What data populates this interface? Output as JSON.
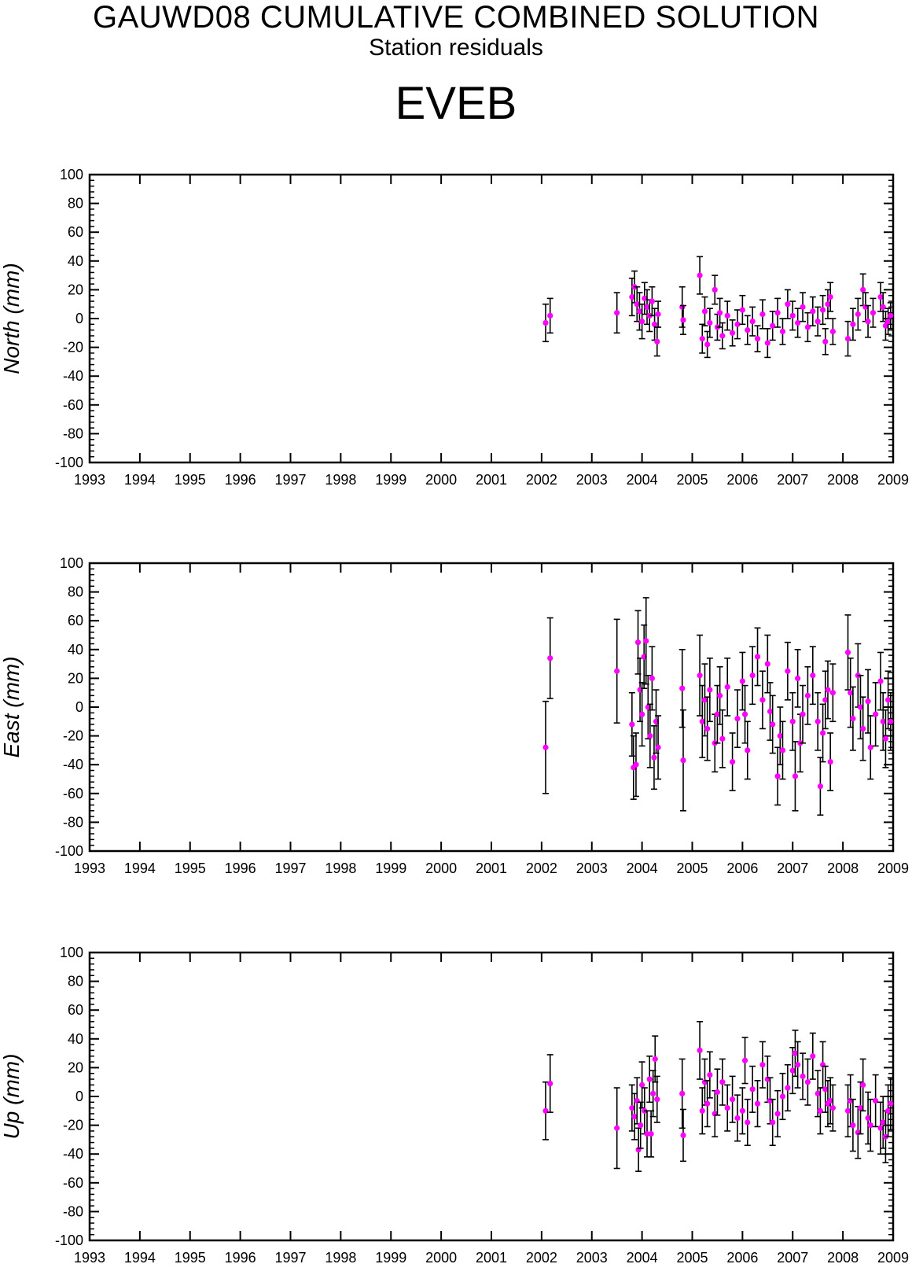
{
  "header": {
    "title": "GAUWD08 CUMULATIVE COMBINED SOLUTION",
    "subtitle": "Station residuals",
    "station": "EVEB"
  },
  "colors": {
    "point": "#ff00ff",
    "error_bar": "#000000",
    "axis": "#000000"
  },
  "chart_data": [
    {
      "type": "scatter",
      "name": "north-panel",
      "ylabel": "North (mm)",
      "xlim": [
        1993,
        2009
      ],
      "ylim": [
        -100,
        100
      ],
      "xticks": [
        "1993",
        "1994",
        "1995",
        "1996",
        "1997",
        "1998",
        "1999",
        "2000",
        "2001",
        "2002",
        "2003",
        "2004",
        "2005",
        "2006",
        "2007",
        "2008",
        "2009"
      ],
      "yticks": [
        "100",
        "80",
        "60",
        "40",
        "20",
        "0",
        "-20",
        "-40",
        "-60",
        "-80",
        "-100"
      ],
      "grid": false,
      "points": [
        {
          "x": 2002.08,
          "y": -3,
          "err": 13
        },
        {
          "x": 2002.17,
          "y": 2,
          "err": 12
        },
        {
          "x": 2003.5,
          "y": 4,
          "err": 14
        },
        {
          "x": 2003.8,
          "y": 15,
          "err": 13
        },
        {
          "x": 2003.85,
          "y": 22,
          "err": 11
        },
        {
          "x": 2003.9,
          "y": 10,
          "err": 12
        },
        {
          "x": 2003.95,
          "y": 5,
          "err": 13
        },
        {
          "x": 2004.0,
          "y": -2,
          "err": 12
        },
        {
          "x": 2004.05,
          "y": 14,
          "err": 11
        },
        {
          "x": 2004.1,
          "y": 8,
          "err": 12
        },
        {
          "x": 2004.15,
          "y": 2,
          "err": 11
        },
        {
          "x": 2004.2,
          "y": 12,
          "err": 10
        },
        {
          "x": 2004.25,
          "y": -4,
          "err": 11
        },
        {
          "x": 2004.3,
          "y": -16,
          "err": 10
        },
        {
          "x": 2004.32,
          "y": 3,
          "err": 9
        },
        {
          "x": 2004.8,
          "y": 8,
          "err": 14
        },
        {
          "x": 2004.82,
          "y": -1,
          "err": 10
        },
        {
          "x": 2005.15,
          "y": 30,
          "err": 13
        },
        {
          "x": 2005.2,
          "y": -14,
          "err": 10
        },
        {
          "x": 2005.25,
          "y": 5,
          "err": 10
        },
        {
          "x": 2005.3,
          "y": -18,
          "err": 9
        },
        {
          "x": 2005.35,
          "y": -3,
          "err": 10
        },
        {
          "x": 2005.45,
          "y": 20,
          "err": 10
        },
        {
          "x": 2005.5,
          "y": -6,
          "err": 9
        },
        {
          "x": 2005.55,
          "y": 4,
          "err": 10
        },
        {
          "x": 2005.6,
          "y": -12,
          "err": 9
        },
        {
          "x": 2005.7,
          "y": 2,
          "err": 10
        },
        {
          "x": 2005.8,
          "y": -10,
          "err": 9
        },
        {
          "x": 2005.9,
          "y": -4,
          "err": 10
        },
        {
          "x": 2006.0,
          "y": 6,
          "err": 10
        },
        {
          "x": 2006.1,
          "y": -8,
          "err": 10
        },
        {
          "x": 2006.2,
          "y": -2,
          "err": 10
        },
        {
          "x": 2006.3,
          "y": -14,
          "err": 9
        },
        {
          "x": 2006.4,
          "y": 3,
          "err": 10
        },
        {
          "x": 2006.5,
          "y": -17,
          "err": 10
        },
        {
          "x": 2006.6,
          "y": -5,
          "err": 10
        },
        {
          "x": 2006.7,
          "y": 4,
          "err": 10
        },
        {
          "x": 2006.8,
          "y": -9,
          "err": 9
        },
        {
          "x": 2006.9,
          "y": 10,
          "err": 10
        },
        {
          "x": 2007.0,
          "y": 2,
          "err": 10
        },
        {
          "x": 2007.1,
          "y": -3,
          "err": 10
        },
        {
          "x": 2007.2,
          "y": 8,
          "err": 10
        },
        {
          "x": 2007.3,
          "y": -6,
          "err": 10
        },
        {
          "x": 2007.4,
          "y": 5,
          "err": 10
        },
        {
          "x": 2007.5,
          "y": -2,
          "err": 10
        },
        {
          "x": 2007.6,
          "y": 6,
          "err": 10
        },
        {
          "x": 2007.65,
          "y": -16,
          "err": 9
        },
        {
          "x": 2007.7,
          "y": 10,
          "err": 10
        },
        {
          "x": 2007.75,
          "y": 15,
          "err": 10
        },
        {
          "x": 2007.8,
          "y": -9,
          "err": 9
        },
        {
          "x": 2008.1,
          "y": -14,
          "err": 12
        },
        {
          "x": 2008.2,
          "y": -4,
          "err": 11
        },
        {
          "x": 2008.3,
          "y": 3,
          "err": 11
        },
        {
          "x": 2008.4,
          "y": 20,
          "err": 11
        },
        {
          "x": 2008.45,
          "y": 8,
          "err": 10
        },
        {
          "x": 2008.5,
          "y": -2,
          "err": 11
        },
        {
          "x": 2008.6,
          "y": 4,
          "err": 10
        },
        {
          "x": 2008.75,
          "y": 15,
          "err": 10
        },
        {
          "x": 2008.8,
          "y": 8,
          "err": 10
        },
        {
          "x": 2008.85,
          "y": -5,
          "err": 10
        },
        {
          "x": 2008.9,
          "y": -2,
          "err": 9
        },
        {
          "x": 2008.95,
          "y": 2,
          "err": 9
        }
      ]
    },
    {
      "type": "scatter",
      "name": "east-panel",
      "ylabel": "East (mm)",
      "xlim": [
        1993,
        2009
      ],
      "ylim": [
        -100,
        100
      ],
      "xticks": [
        "1993",
        "1994",
        "1995",
        "1996",
        "1997",
        "1998",
        "1999",
        "2000",
        "2001",
        "2002",
        "2003",
        "2004",
        "2005",
        "2006",
        "2007",
        "2008",
        "2009"
      ],
      "yticks": [
        "100",
        "80",
        "60",
        "40",
        "20",
        "0",
        "-20",
        "-40",
        "-60",
        "-80",
        "-100"
      ],
      "grid": false,
      "points": [
        {
          "x": 2002.08,
          "y": -28,
          "err": 32
        },
        {
          "x": 2002.17,
          "y": 34,
          "err": 28
        },
        {
          "x": 2003.5,
          "y": 25,
          "err": 36
        },
        {
          "x": 2003.8,
          "y": -12,
          "err": 22
        },
        {
          "x": 2003.83,
          "y": -42,
          "err": 22
        },
        {
          "x": 2003.88,
          "y": -40,
          "err": 22
        },
        {
          "x": 2003.92,
          "y": 45,
          "err": 22
        },
        {
          "x": 2003.96,
          "y": 12,
          "err": 22
        },
        {
          "x": 2004.0,
          "y": -5,
          "err": 22
        },
        {
          "x": 2004.04,
          "y": 35,
          "err": 22
        },
        {
          "x": 2004.08,
          "y": 46,
          "err": 30
        },
        {
          "x": 2004.12,
          "y": 0,
          "err": 22
        },
        {
          "x": 2004.16,
          "y": -20,
          "err": 22
        },
        {
          "x": 2004.2,
          "y": 20,
          "err": 22
        },
        {
          "x": 2004.24,
          "y": -35,
          "err": 22
        },
        {
          "x": 2004.28,
          "y": -10,
          "err": 22
        },
        {
          "x": 2004.32,
          "y": -28,
          "err": 22
        },
        {
          "x": 2004.8,
          "y": 13,
          "err": 27
        },
        {
          "x": 2004.82,
          "y": -37,
          "err": 35
        },
        {
          "x": 2005.15,
          "y": 22,
          "err": 28
        },
        {
          "x": 2005.2,
          "y": -10,
          "err": 25
        },
        {
          "x": 2005.25,
          "y": 5,
          "err": 25
        },
        {
          "x": 2005.3,
          "y": -15,
          "err": 22
        },
        {
          "x": 2005.35,
          "y": 12,
          "err": 22
        },
        {
          "x": 2005.45,
          "y": -25,
          "err": 20
        },
        {
          "x": 2005.5,
          "y": -5,
          "err": 20
        },
        {
          "x": 2005.55,
          "y": 8,
          "err": 20
        },
        {
          "x": 2005.6,
          "y": -22,
          "err": 20
        },
        {
          "x": 2005.7,
          "y": 14,
          "err": 20
        },
        {
          "x": 2005.8,
          "y": -38,
          "err": 20
        },
        {
          "x": 2005.9,
          "y": -8,
          "err": 20
        },
        {
          "x": 2006.0,
          "y": 18,
          "err": 20
        },
        {
          "x": 2006.05,
          "y": -5,
          "err": 20
        },
        {
          "x": 2006.1,
          "y": -30,
          "err": 20
        },
        {
          "x": 2006.2,
          "y": 22,
          "err": 20
        },
        {
          "x": 2006.3,
          "y": 35,
          "err": 20
        },
        {
          "x": 2006.4,
          "y": 5,
          "err": 20
        },
        {
          "x": 2006.5,
          "y": 30,
          "err": 20
        },
        {
          "x": 2006.55,
          "y": -3,
          "err": 20
        },
        {
          "x": 2006.6,
          "y": -12,
          "err": 20
        },
        {
          "x": 2006.7,
          "y": -48,
          "err": 20
        },
        {
          "x": 2006.75,
          "y": -20,
          "err": 20
        },
        {
          "x": 2006.8,
          "y": -30,
          "err": 20
        },
        {
          "x": 2006.9,
          "y": 25,
          "err": 20
        },
        {
          "x": 2007.0,
          "y": -10,
          "err": 20
        },
        {
          "x": 2007.05,
          "y": -48,
          "err": 24
        },
        {
          "x": 2007.1,
          "y": 20,
          "err": 20
        },
        {
          "x": 2007.15,
          "y": -25,
          "err": 20
        },
        {
          "x": 2007.2,
          "y": -5,
          "err": 20
        },
        {
          "x": 2007.3,
          "y": 8,
          "err": 20
        },
        {
          "x": 2007.4,
          "y": 22,
          "err": 20
        },
        {
          "x": 2007.5,
          "y": -10,
          "err": 20
        },
        {
          "x": 2007.55,
          "y": -55,
          "err": 20
        },
        {
          "x": 2007.6,
          "y": -18,
          "err": 20
        },
        {
          "x": 2007.65,
          "y": 5,
          "err": 20
        },
        {
          "x": 2007.7,
          "y": 12,
          "err": 20
        },
        {
          "x": 2007.75,
          "y": -38,
          "err": 20
        },
        {
          "x": 2007.8,
          "y": 10,
          "err": 20
        },
        {
          "x": 2008.1,
          "y": 38,
          "err": 26
        },
        {
          "x": 2008.15,
          "y": 10,
          "err": 24
        },
        {
          "x": 2008.2,
          "y": -8,
          "err": 22
        },
        {
          "x": 2008.3,
          "y": 22,
          "err": 22
        },
        {
          "x": 2008.35,
          "y": 0,
          "err": 22
        },
        {
          "x": 2008.4,
          "y": -15,
          "err": 22
        },
        {
          "x": 2008.5,
          "y": 4,
          "err": 22
        },
        {
          "x": 2008.55,
          "y": -28,
          "err": 22
        },
        {
          "x": 2008.65,
          "y": -5,
          "err": 22
        },
        {
          "x": 2008.75,
          "y": 18,
          "err": 20
        },
        {
          "x": 2008.8,
          "y": -10,
          "err": 20
        },
        {
          "x": 2008.85,
          "y": -22,
          "err": 20
        },
        {
          "x": 2008.9,
          "y": 5,
          "err": 20
        },
        {
          "x": 2008.95,
          "y": -10,
          "err": 20
        }
      ]
    },
    {
      "type": "scatter",
      "name": "up-panel",
      "ylabel": "Up (mm)",
      "xlim": [
        1993,
        2009
      ],
      "ylim": [
        -100,
        100
      ],
      "xticks": [
        "1993",
        "1994",
        "1995",
        "1996",
        "1997",
        "1998",
        "1999",
        "2000",
        "2001",
        "2002",
        "2003",
        "2004",
        "2005",
        "2006",
        "2007",
        "2008",
        "2009"
      ],
      "yticks": [
        "100",
        "80",
        "60",
        "40",
        "20",
        "0",
        "-20",
        "-40",
        "-60",
        "-80",
        "-100"
      ],
      "grid": false,
      "points": [
        {
          "x": 2002.08,
          "y": -10,
          "err": 20
        },
        {
          "x": 2002.17,
          "y": 9,
          "err": 20
        },
        {
          "x": 2003.5,
          "y": -22,
          "err": 28
        },
        {
          "x": 2003.8,
          "y": -8,
          "err": 16
        },
        {
          "x": 2003.85,
          "y": -14,
          "err": 16
        },
        {
          "x": 2003.9,
          "y": -3,
          "err": 16
        },
        {
          "x": 2003.93,
          "y": -37,
          "err": 15
        },
        {
          "x": 2003.97,
          "y": -20,
          "err": 16
        },
        {
          "x": 2004.0,
          "y": 8,
          "err": 16
        },
        {
          "x": 2004.05,
          "y": -10,
          "err": 16
        },
        {
          "x": 2004.1,
          "y": -26,
          "err": 16
        },
        {
          "x": 2004.15,
          "y": 12,
          "err": 16
        },
        {
          "x": 2004.18,
          "y": -26,
          "err": 16
        },
        {
          "x": 2004.22,
          "y": 2,
          "err": 16
        },
        {
          "x": 2004.26,
          "y": 26,
          "err": 16
        },
        {
          "x": 2004.3,
          "y": -2,
          "err": 16
        },
        {
          "x": 2004.8,
          "y": 2,
          "err": 24
        },
        {
          "x": 2004.82,
          "y": -27,
          "err": 18
        },
        {
          "x": 2005.15,
          "y": 32,
          "err": 20
        },
        {
          "x": 2005.2,
          "y": -10,
          "err": 16
        },
        {
          "x": 2005.25,
          "y": 10,
          "err": 16
        },
        {
          "x": 2005.3,
          "y": -5,
          "err": 16
        },
        {
          "x": 2005.35,
          "y": 15,
          "err": 16
        },
        {
          "x": 2005.45,
          "y": -12,
          "err": 16
        },
        {
          "x": 2005.5,
          "y": 3,
          "err": 16
        },
        {
          "x": 2005.6,
          "y": 10,
          "err": 16
        },
        {
          "x": 2005.7,
          "y": -8,
          "err": 16
        },
        {
          "x": 2005.8,
          "y": -2,
          "err": 16
        },
        {
          "x": 2005.9,
          "y": -15,
          "err": 16
        },
        {
          "x": 2006.0,
          "y": -10,
          "err": 16
        },
        {
          "x": 2006.05,
          "y": 25,
          "err": 16
        },
        {
          "x": 2006.1,
          "y": -18,
          "err": 16
        },
        {
          "x": 2006.2,
          "y": 5,
          "err": 16
        },
        {
          "x": 2006.3,
          "y": -5,
          "err": 16
        },
        {
          "x": 2006.4,
          "y": 22,
          "err": 16
        },
        {
          "x": 2006.5,
          "y": 12,
          "err": 16
        },
        {
          "x": 2006.55,
          "y": -3,
          "err": 16
        },
        {
          "x": 2006.6,
          "y": -18,
          "err": 16
        },
        {
          "x": 2006.7,
          "y": -12,
          "err": 16
        },
        {
          "x": 2006.8,
          "y": 0,
          "err": 16
        },
        {
          "x": 2006.9,
          "y": 6,
          "err": 16
        },
        {
          "x": 2007.0,
          "y": 18,
          "err": 16
        },
        {
          "x": 2007.05,
          "y": 30,
          "err": 16
        },
        {
          "x": 2007.1,
          "y": 22,
          "err": 16
        },
        {
          "x": 2007.2,
          "y": 14,
          "err": 16
        },
        {
          "x": 2007.3,
          "y": 10,
          "err": 16
        },
        {
          "x": 2007.4,
          "y": 28,
          "err": 16
        },
        {
          "x": 2007.5,
          "y": 2,
          "err": 16
        },
        {
          "x": 2007.55,
          "y": -10,
          "err": 16
        },
        {
          "x": 2007.6,
          "y": 22,
          "err": 16
        },
        {
          "x": 2007.65,
          "y": 5,
          "err": 16
        },
        {
          "x": 2007.7,
          "y": -5,
          "err": 16
        },
        {
          "x": 2007.75,
          "y": -3,
          "err": 16
        },
        {
          "x": 2007.8,
          "y": -8,
          "err": 16
        },
        {
          "x": 2008.1,
          "y": -10,
          "err": 18
        },
        {
          "x": 2008.15,
          "y": -3,
          "err": 18
        },
        {
          "x": 2008.2,
          "y": -20,
          "err": 18
        },
        {
          "x": 2008.3,
          "y": -25,
          "err": 18
        },
        {
          "x": 2008.35,
          "y": -8,
          "err": 18
        },
        {
          "x": 2008.4,
          "y": 8,
          "err": 18
        },
        {
          "x": 2008.5,
          "y": -15,
          "err": 18
        },
        {
          "x": 2008.55,
          "y": -20,
          "err": 18
        },
        {
          "x": 2008.65,
          "y": -3,
          "err": 18
        },
        {
          "x": 2008.75,
          "y": -22,
          "err": 18
        },
        {
          "x": 2008.8,
          "y": -18,
          "err": 18
        },
        {
          "x": 2008.85,
          "y": -28,
          "err": 18
        },
        {
          "x": 2008.9,
          "y": -10,
          "err": 18
        },
        {
          "x": 2008.95,
          "y": -5,
          "err": 18
        }
      ]
    }
  ]
}
